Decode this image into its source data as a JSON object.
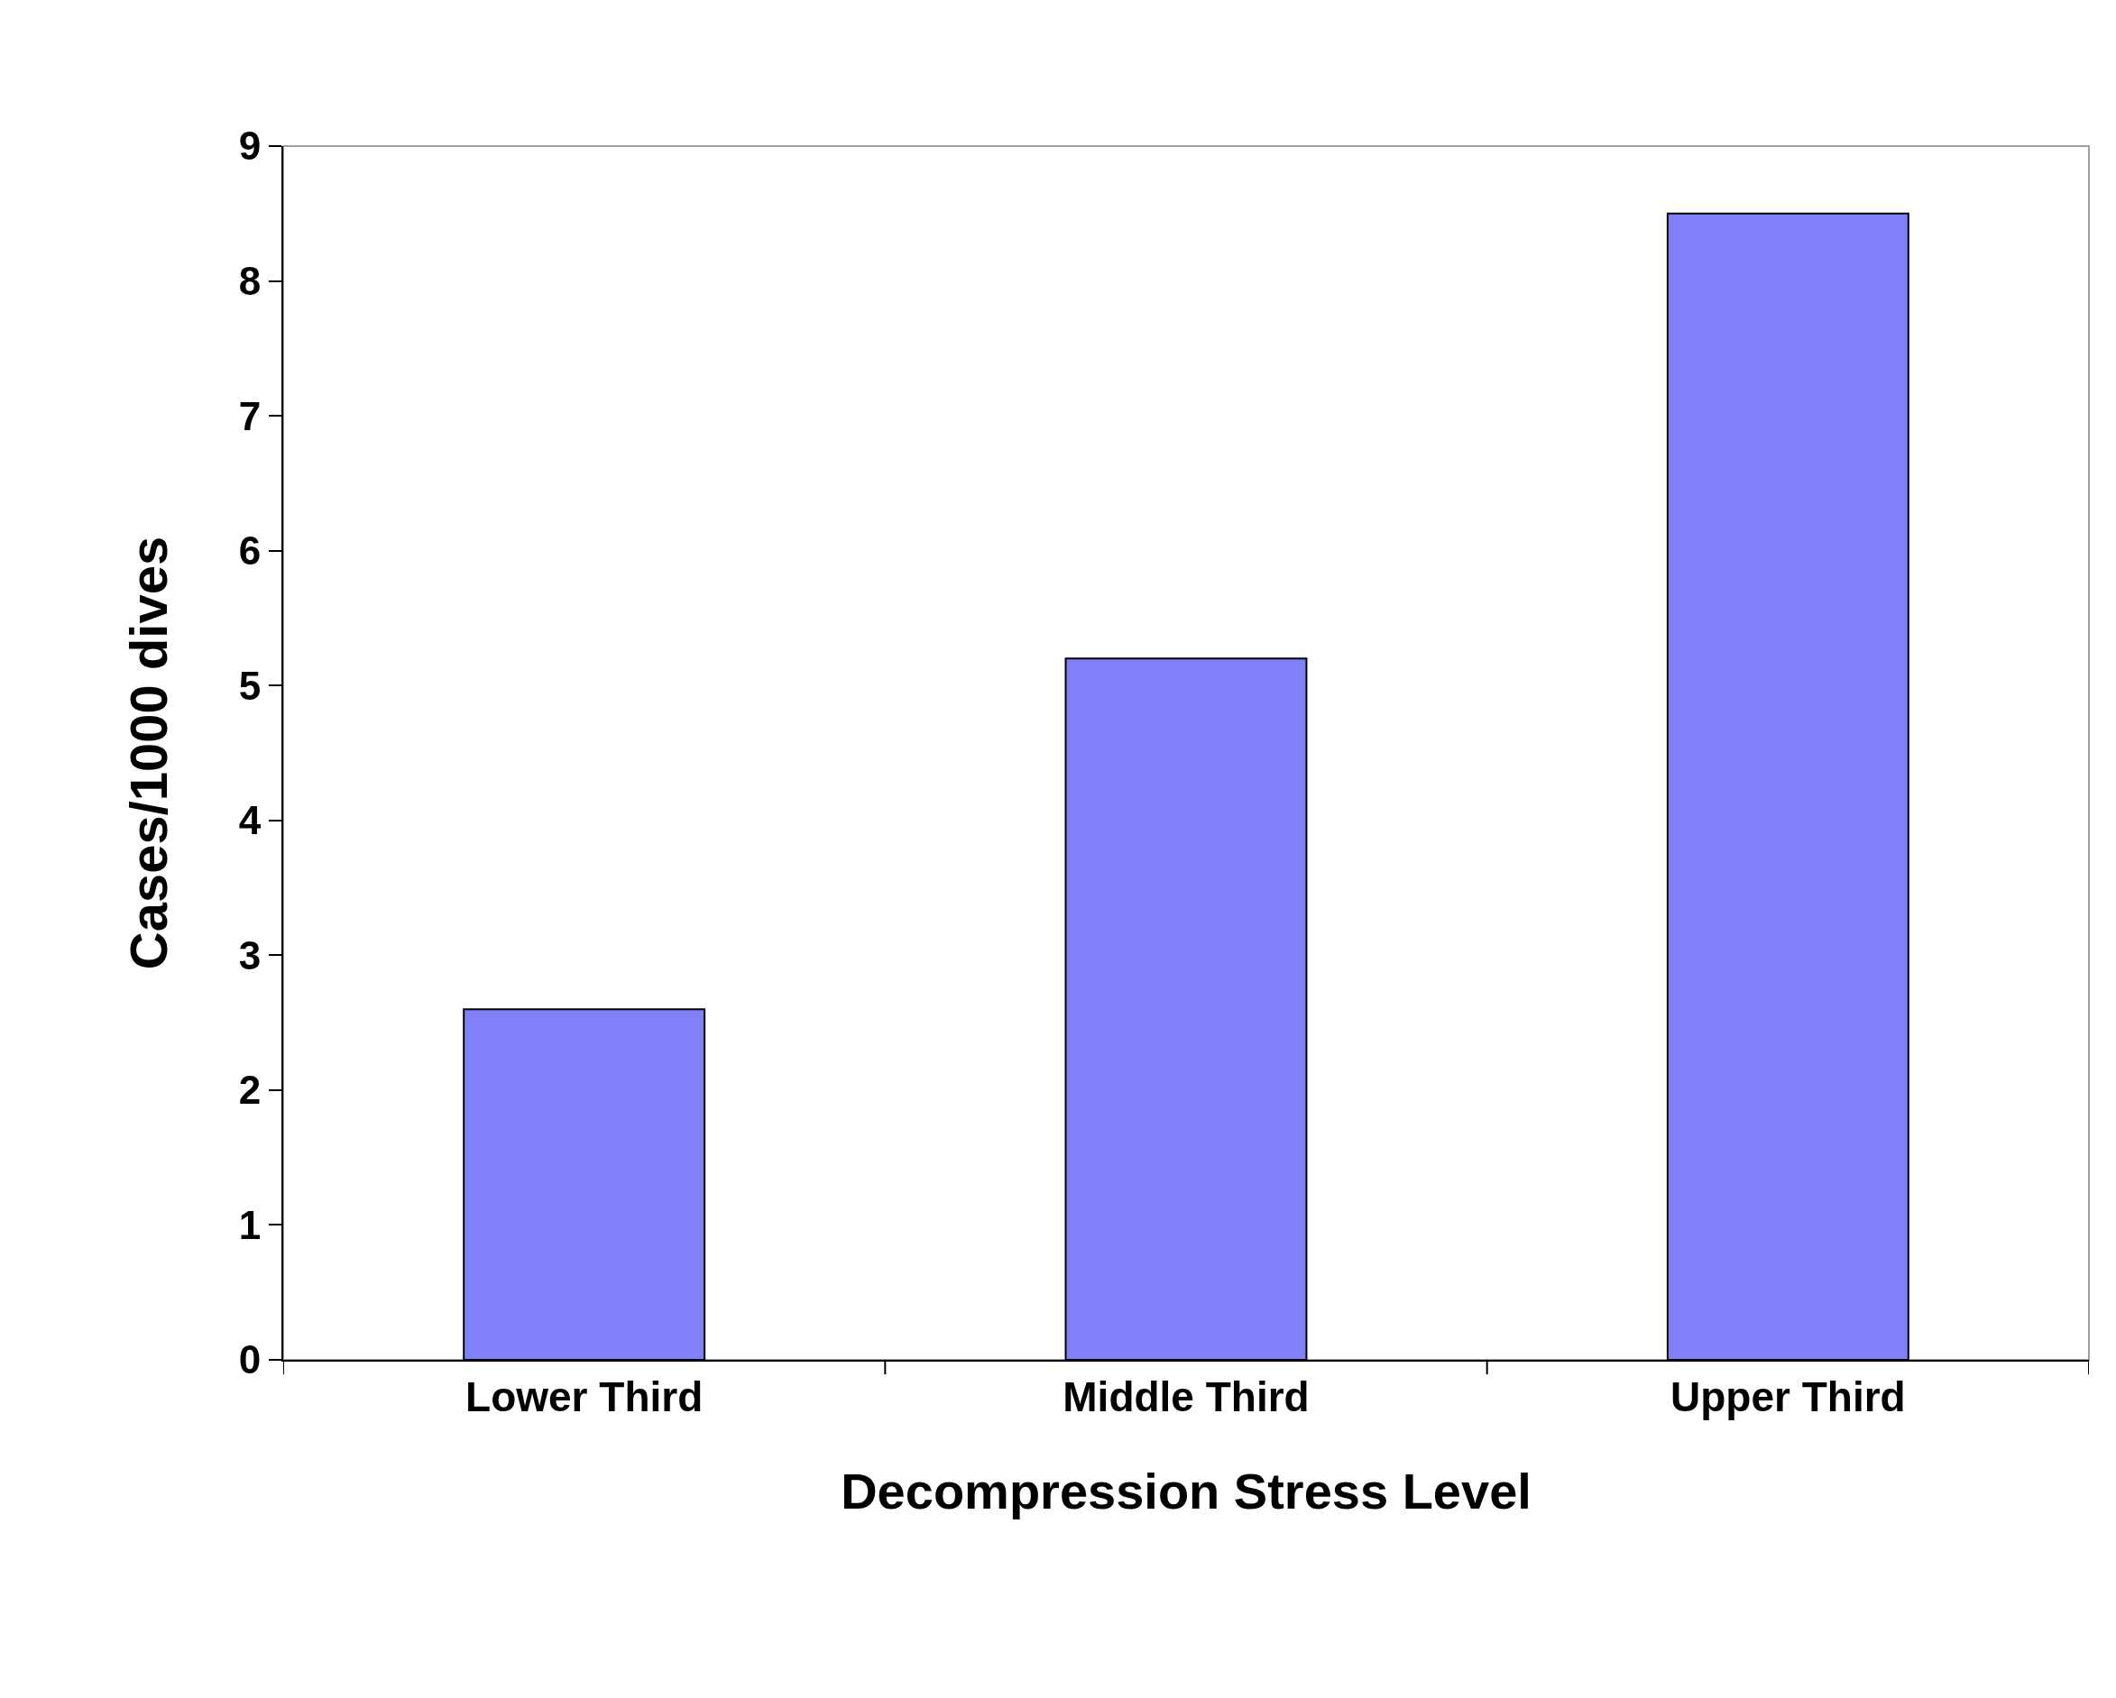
{
  "chart_data": {
    "type": "bar",
    "xlabel": "Decompression Stress Level",
    "ylabel": "Cases/1000 dives",
    "categories": [
      "Lower Third",
      "Middle Third",
      "Upper Third"
    ],
    "values": [
      2.6,
      5.2,
      8.5
    ],
    "color": "#8080f8",
    "ylim": [
      0,
      9
    ],
    "yticks": [
      0,
      1,
      2,
      3,
      4,
      5,
      6,
      7,
      8,
      9
    ]
  }
}
